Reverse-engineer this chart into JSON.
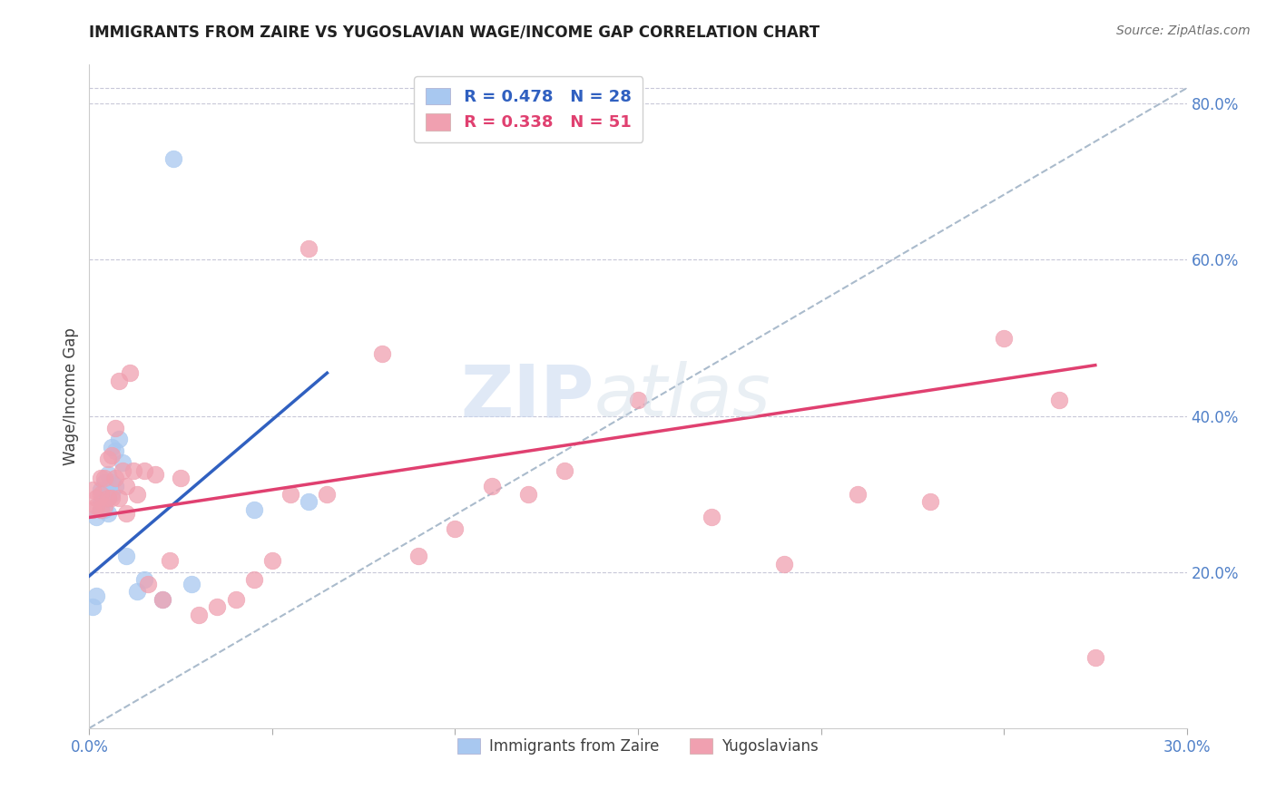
{
  "title": "IMMIGRANTS FROM ZAIRE VS YUGOSLAVIAN WAGE/INCOME GAP CORRELATION CHART",
  "source": "Source: ZipAtlas.com",
  "ylabel": "Wage/Income Gap",
  "xlim": [
    0.0,
    0.3
  ],
  "ylim": [
    0.0,
    0.85
  ],
  "x_ticks": [
    0.0,
    0.05,
    0.1,
    0.15,
    0.2,
    0.25,
    0.3
  ],
  "x_tick_labels": [
    "0.0%",
    "",
    "",
    "",
    "",
    "",
    "30.0%"
  ],
  "y_ticks_right": [
    0.2,
    0.4,
    0.6,
    0.8
  ],
  "y_tick_labels_right": [
    "20.0%",
    "40.0%",
    "60.0%",
    "80.0%"
  ],
  "legend_r1": "R = 0.478",
  "legend_n1": "N = 28",
  "legend_r2": "R = 0.338",
  "legend_n2": "N = 51",
  "color_blue": "#a8c8f0",
  "color_pink": "#f0a0b0",
  "color_trend_blue": "#3060c0",
  "color_trend_pink": "#e04070",
  "color_title": "#202020",
  "color_right_labels": "#5080c8",
  "color_bottom_labels": "#5080c8",
  "watermark_zip": "ZIP",
  "watermark_atlas": "atlas",
  "background_color": "#ffffff",
  "grid_color": "#c8c8d8",
  "zaire_x": [
    0.001,
    0.002,
    0.002,
    0.003,
    0.003,
    0.003,
    0.004,
    0.004,
    0.004,
    0.005,
    0.005,
    0.005,
    0.005,
    0.006,
    0.006,
    0.006,
    0.007,
    0.007,
    0.008,
    0.009,
    0.01,
    0.013,
    0.015,
    0.02,
    0.023,
    0.028,
    0.045,
    0.06
  ],
  "zaire_y": [
    0.155,
    0.17,
    0.27,
    0.28,
    0.29,
    0.305,
    0.28,
    0.3,
    0.315,
    0.275,
    0.295,
    0.31,
    0.325,
    0.3,
    0.315,
    0.36,
    0.31,
    0.355,
    0.37,
    0.34,
    0.22,
    0.175,
    0.19,
    0.165,
    0.73,
    0.185,
    0.28,
    0.29
  ],
  "yugo_x": [
    0.001,
    0.001,
    0.002,
    0.002,
    0.003,
    0.003,
    0.003,
    0.004,
    0.004,
    0.005,
    0.005,
    0.006,
    0.006,
    0.007,
    0.007,
    0.008,
    0.008,
    0.009,
    0.01,
    0.01,
    0.011,
    0.012,
    0.013,
    0.015,
    0.016,
    0.018,
    0.02,
    0.022,
    0.025,
    0.03,
    0.035,
    0.04,
    0.045,
    0.05,
    0.055,
    0.06,
    0.065,
    0.08,
    0.09,
    0.1,
    0.11,
    0.12,
    0.13,
    0.15,
    0.17,
    0.19,
    0.21,
    0.23,
    0.25,
    0.265,
    0.275
  ],
  "yugo_y": [
    0.28,
    0.305,
    0.285,
    0.295,
    0.28,
    0.3,
    0.32,
    0.285,
    0.32,
    0.295,
    0.345,
    0.295,
    0.35,
    0.32,
    0.385,
    0.295,
    0.445,
    0.33,
    0.275,
    0.31,
    0.455,
    0.33,
    0.3,
    0.33,
    0.185,
    0.325,
    0.165,
    0.215,
    0.32,
    0.145,
    0.155,
    0.165,
    0.19,
    0.215,
    0.3,
    0.615,
    0.3,
    0.48,
    0.22,
    0.255,
    0.31,
    0.3,
    0.33,
    0.42,
    0.27,
    0.21,
    0.3,
    0.29,
    0.5,
    0.42,
    0.09
  ],
  "blue_trend_x": [
    0.0,
    0.065
  ],
  "blue_trend_y": [
    0.195,
    0.455
  ],
  "pink_trend_x": [
    0.0,
    0.275
  ],
  "pink_trend_y": [
    0.27,
    0.465
  ],
  "ref_line_x": [
    0.0,
    0.3
  ],
  "ref_line_y": [
    0.0,
    0.82
  ]
}
